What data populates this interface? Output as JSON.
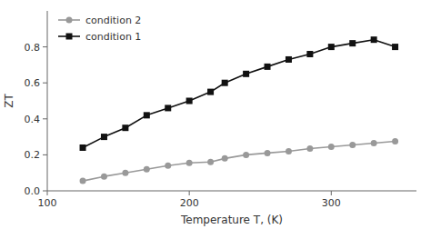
{
  "chart_data": {
    "type": "line",
    "xlabel": "Temperature T, (K)",
    "ylabel": "ZT",
    "x": [
      125,
      140,
      155,
      170,
      185,
      200,
      215,
      225,
      240,
      255,
      270,
      285,
      300,
      315,
      330,
      345
    ],
    "series": [
      {
        "name": "condition 2",
        "color": "#999999",
        "marker": "circle",
        "values": [
          0.055,
          0.08,
          0.1,
          0.12,
          0.14,
          0.155,
          0.16,
          0.18,
          0.2,
          0.21,
          0.22,
          0.235,
          0.245,
          0.255,
          0.265,
          0.275
        ]
      },
      {
        "name": "condition 1",
        "color": "#111111",
        "marker": "square",
        "values": [
          0.24,
          0.3,
          0.35,
          0.42,
          0.46,
          0.5,
          0.55,
          0.6,
          0.65,
          0.69,
          0.73,
          0.76,
          0.8,
          0.82,
          0.84,
          0.8
        ]
      }
    ],
    "xlim": [
      100,
      360
    ],
    "ylim": [
      0,
      1.0
    ],
    "xticks": [
      100,
      200,
      300
    ],
    "yticks": [
      {
        "value": 0.0,
        "label": "0.0"
      },
      0.2,
      0.4,
      0.6,
      0.8
    ],
    "legend": "upper left",
    "grid": false
  }
}
